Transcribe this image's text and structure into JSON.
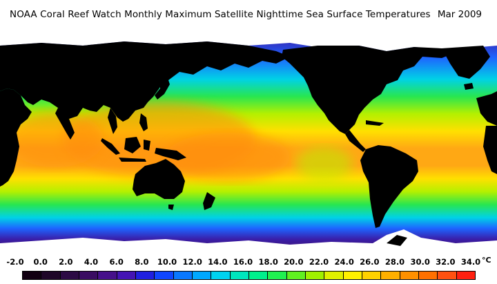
{
  "title": {
    "text": "NOAA Coral Reef Watch Monthly Maximum Satellite Nighttime Sea Surface Temperatures",
    "date": "Mar 2009"
  },
  "legend": {
    "unit": "°C",
    "labels": [
      "-2.0",
      "0.0",
      "2.0",
      "4.0",
      "6.0",
      "8.0",
      "10.0",
      "12.0",
      "14.0",
      "16.0",
      "18.0",
      "20.0",
      "22.0",
      "24.0",
      "26.0",
      "28.0",
      "30.0",
      "32.0",
      "34.0"
    ],
    "colors": [
      "#120012",
      "#1e0628",
      "#2c0a44",
      "#3a0c62",
      "#46108a",
      "#4414b4",
      "#2020e0",
      "#1046ff",
      "#0a78ff",
      "#00a8ff",
      "#00d2f0",
      "#00e6be",
      "#00f08c",
      "#20f050",
      "#60f020",
      "#a0f000",
      "#e0f000",
      "#fff000",
      "#ffd200",
      "#ffb000",
      "#ff9000",
      "#ff7000",
      "#ff5010",
      "#ff2010"
    ]
  },
  "map": {
    "colors": {
      "land": "#000000",
      "ice": "#ffffff",
      "polar_south": "#3c0c64",
      "cold": "#3a1ea8",
      "cool": "#1e64ff",
      "mild": "#00d2e6",
      "temperate": "#28e650",
      "warm": "#b4f000",
      "hot": "#ffe000",
      "tropical": "#ffa814",
      "hottest": "#ff8c10"
    }
  }
}
